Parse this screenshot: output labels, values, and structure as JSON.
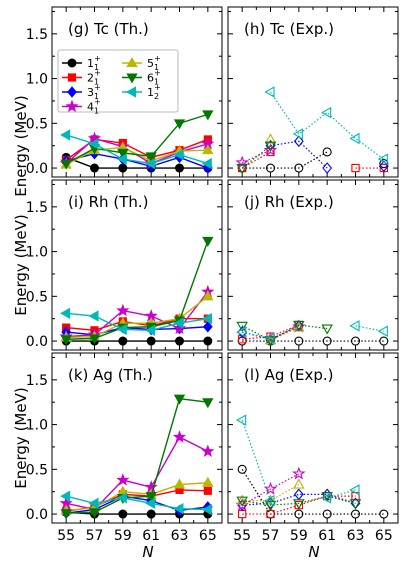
{
  "figure": {
    "ylabel": "Energy (MeV)",
    "xlabel": "N"
  },
  "legend": [
    {
      "base": "1",
      "sub": "1",
      "sup": "+",
      "color": "#000000",
      "marker": "circle"
    },
    {
      "base": "2",
      "sub": "1",
      "sup": "+",
      "color": "#ff0000",
      "marker": "square"
    },
    {
      "base": "3",
      "sub": "1",
      "sup": "+",
      "color": "#0000ff",
      "marker": "diamond"
    },
    {
      "base": "4",
      "sub": "1",
      "sup": "+",
      "color": "#cc00cc",
      "marker": "star"
    },
    {
      "base": "5",
      "sub": "1",
      "sup": "+",
      "color": "#b8b800",
      "marker": "triangle-up"
    },
    {
      "base": "6",
      "sub": "1",
      "sup": "+",
      "color": "#007700",
      "marker": "triangle-down"
    },
    {
      "base": "1",
      "sub": "2",
      "sup": "+",
      "color": "#00b8b8",
      "marker": "triangle-left"
    }
  ],
  "chart_data": [
    {
      "type": "line",
      "label": "(g) Tc (Th.)",
      "filled": true,
      "x": [
        55,
        57,
        59,
        61,
        63,
        65
      ],
      "xlim": [
        54,
        66
      ],
      "ylim": [
        -0.1,
        1.8
      ],
      "yticks": [
        0.0,
        0.5,
        1.0,
        1.5
      ],
      "xticks": [
        55,
        57,
        59,
        61,
        63,
        65
      ],
      "series": [
        {
          "key": "1",
          "values": [
            0.12,
            0.0,
            0.0,
            0.0,
            0.0,
            0.0
          ]
        },
        {
          "key": "2",
          "values": [
            0.09,
            0.32,
            0.28,
            0.12,
            0.2,
            0.32
          ]
        },
        {
          "key": "3",
          "values": [
            0.08,
            0.16,
            0.1,
            0.02,
            0.12,
            0.0
          ]
        },
        {
          "key": "4",
          "values": [
            0.05,
            0.33,
            0.24,
            0.05,
            0.18,
            0.27
          ]
        },
        {
          "key": "5",
          "values": [
            0.04,
            0.2,
            0.23,
            0.08,
            0.19,
            0.2
          ]
        },
        {
          "key": "6",
          "values": [
            0.05,
            0.22,
            0.17,
            0.13,
            0.5,
            0.6
          ]
        },
        {
          "key": "7",
          "values": [
            0.37,
            0.27,
            0.1,
            0.05,
            0.15,
            0.05
          ]
        }
      ]
    },
    {
      "type": "line",
      "label": "(h) Tc (Exp.)",
      "filled": false,
      "x": [
        55,
        57,
        59,
        61,
        63,
        65
      ],
      "xlim": [
        54,
        66
      ],
      "ylim": [
        -0.1,
        1.8
      ],
      "yticks": [
        0.0,
        0.5,
        1.0,
        1.5
      ],
      "xticks": [
        55,
        57,
        59,
        61,
        63,
        65
      ],
      "series": [
        {
          "key": "1",
          "values": [
            0.0,
            0.0,
            0.0,
            0.18,
            null,
            0.05
          ]
        },
        {
          "key": "2",
          "values": [
            0.0,
            0.18,
            null,
            null,
            0.0,
            0.0
          ]
        },
        {
          "key": "3",
          "values": [
            null,
            0.25,
            0.3,
            0.0,
            null,
            0.02
          ]
        },
        {
          "key": "4",
          "values": [
            0.06,
            0.2,
            null,
            null,
            null,
            null
          ]
        },
        {
          "key": "5",
          "values": [
            null,
            0.32,
            null,
            null,
            null,
            null
          ]
        },
        {
          "key": "6",
          "values": [
            0.0,
            0.25,
            null,
            null,
            null,
            null
          ]
        },
        {
          "key": "7",
          "values": [
            null,
            0.85,
            0.38,
            0.62,
            0.33,
            0.1
          ]
        }
      ]
    },
    {
      "type": "line",
      "label": "(i) Rh (Th.)",
      "filled": true,
      "x": [
        55,
        57,
        59,
        61,
        63,
        65
      ],
      "xlim": [
        54,
        66
      ],
      "ylim": [
        -0.1,
        1.8
      ],
      "yticks": [
        0.0,
        0.5,
        1.0,
        1.5
      ],
      "xticks": [
        55,
        57,
        59,
        61,
        63,
        65
      ],
      "series": [
        {
          "key": "1",
          "values": [
            0.0,
            0.0,
            0.0,
            0.0,
            0.0,
            0.0
          ]
        },
        {
          "key": "2",
          "values": [
            0.15,
            0.12,
            0.22,
            0.17,
            0.25,
            0.25
          ]
        },
        {
          "key": "3",
          "values": [
            0.1,
            0.07,
            0.15,
            0.13,
            0.14,
            0.16
          ]
        },
        {
          "key": "4",
          "values": [
            0.05,
            0.07,
            0.34,
            0.28,
            0.14,
            0.55
          ]
        },
        {
          "key": "5",
          "values": [
            0.04,
            0.05,
            0.2,
            0.2,
            0.25,
            0.5
          ]
        },
        {
          "key": "6",
          "values": [
            0.02,
            0.03,
            0.15,
            0.16,
            0.23,
            1.12
          ]
        },
        {
          "key": "7",
          "values": [
            0.31,
            0.28,
            0.13,
            0.12,
            0.2,
            0.25
          ]
        }
      ]
    },
    {
      "type": "line",
      "label": "(j) Rh (Exp.)",
      "filled": false,
      "x": [
        55,
        57,
        59,
        61,
        63,
        65
      ],
      "xlim": [
        54,
        66
      ],
      "ylim": [
        -0.1,
        1.8
      ],
      "yticks": [
        0.0,
        0.5,
        1.0,
        1.5
      ],
      "xticks": [
        55,
        57,
        59,
        61,
        63,
        65
      ],
      "series": [
        {
          "key": "1",
          "values": [
            0.0,
            0.0,
            0.0,
            0.0,
            0.0,
            0.0
          ]
        },
        {
          "key": "2",
          "values": [
            0.02,
            0.05,
            0.18,
            null,
            null,
            null
          ]
        },
        {
          "key": "3",
          "values": [
            0.1,
            0.02,
            0.17,
            null,
            null,
            null
          ]
        },
        {
          "key": "4",
          "values": [
            null,
            0.02,
            0.16,
            null,
            null,
            null
          ]
        },
        {
          "key": "5",
          "values": [
            null,
            0.01,
            0.15,
            null,
            null,
            null
          ]
        },
        {
          "key": "6",
          "values": [
            0.17,
            0.01,
            0.18,
            0.14,
            null,
            null
          ]
        },
        {
          "key": "7",
          "values": [
            0.1,
            0.03,
            null,
            null,
            0.17,
            0.11
          ]
        }
      ]
    },
    {
      "type": "line",
      "label": "(k) Ag (Th.)",
      "filled": true,
      "x": [
        55,
        57,
        59,
        61,
        63,
        65
      ],
      "xlim": [
        54,
        66
      ],
      "ylim": [
        -0.1,
        1.8
      ],
      "yticks": [
        0.0,
        0.5,
        1.0,
        1.5
      ],
      "xticks": [
        55,
        57,
        59,
        61,
        63,
        65
      ],
      "series": [
        {
          "key": "1",
          "values": [
            0.02,
            0.0,
            0.0,
            0.0,
            0.0,
            0.0
          ]
        },
        {
          "key": "2",
          "values": [
            0.03,
            0.08,
            0.22,
            0.2,
            0.27,
            0.26
          ]
        },
        {
          "key": "3",
          "values": [
            0.01,
            0.05,
            0.2,
            0.15,
            0.04,
            0.08
          ]
        },
        {
          "key": "4",
          "values": [
            0.12,
            0.05,
            0.38,
            0.3,
            0.86,
            0.7
          ]
        },
        {
          "key": "5",
          "values": [
            0.04,
            0.07,
            0.25,
            0.22,
            0.33,
            0.35
          ]
        },
        {
          "key": "6",
          "values": [
            0.01,
            0.02,
            0.18,
            0.2,
            1.29,
            1.25
          ]
        },
        {
          "key": "7",
          "values": [
            0.2,
            0.12,
            0.18,
            0.12,
            0.06,
            0.05
          ]
        }
      ]
    },
    {
      "type": "line",
      "label": "(l) Ag (Exp.)",
      "filled": false,
      "x": [
        55,
        57,
        59,
        61,
        63,
        65
      ],
      "xlim": [
        54,
        66
      ],
      "ylim": [
        -0.1,
        1.8
      ],
      "yticks": [
        0.0,
        0.5,
        1.0,
        1.5
      ],
      "xticks": [
        55,
        57,
        59,
        61,
        63,
        65
      ],
      "series": [
        {
          "key": "1",
          "values": [
            0.5,
            0.0,
            0.0,
            0.0,
            0.0,
            0.0
          ]
        },
        {
          "key": "2",
          "values": [
            0.0,
            0.0,
            0.1,
            0.2,
            0.2,
            null
          ]
        },
        {
          "key": "3",
          "values": [
            0.1,
            0.12,
            0.22,
            0.22,
            0.12,
            null
          ]
        },
        {
          "key": "4",
          "values": [
            0.1,
            0.28,
            0.45,
            null,
            null,
            null
          ]
        },
        {
          "key": "5",
          "values": [
            0.15,
            0.15,
            0.33,
            null,
            null,
            null
          ]
        },
        {
          "key": "6",
          "values": [
            0.15,
            0.1,
            0.12,
            0.2,
            0.12,
            null
          ]
        },
        {
          "key": "7",
          "values": [
            1.05,
            0.15,
            null,
            0.18,
            0.27,
            null
          ]
        }
      ]
    }
  ]
}
